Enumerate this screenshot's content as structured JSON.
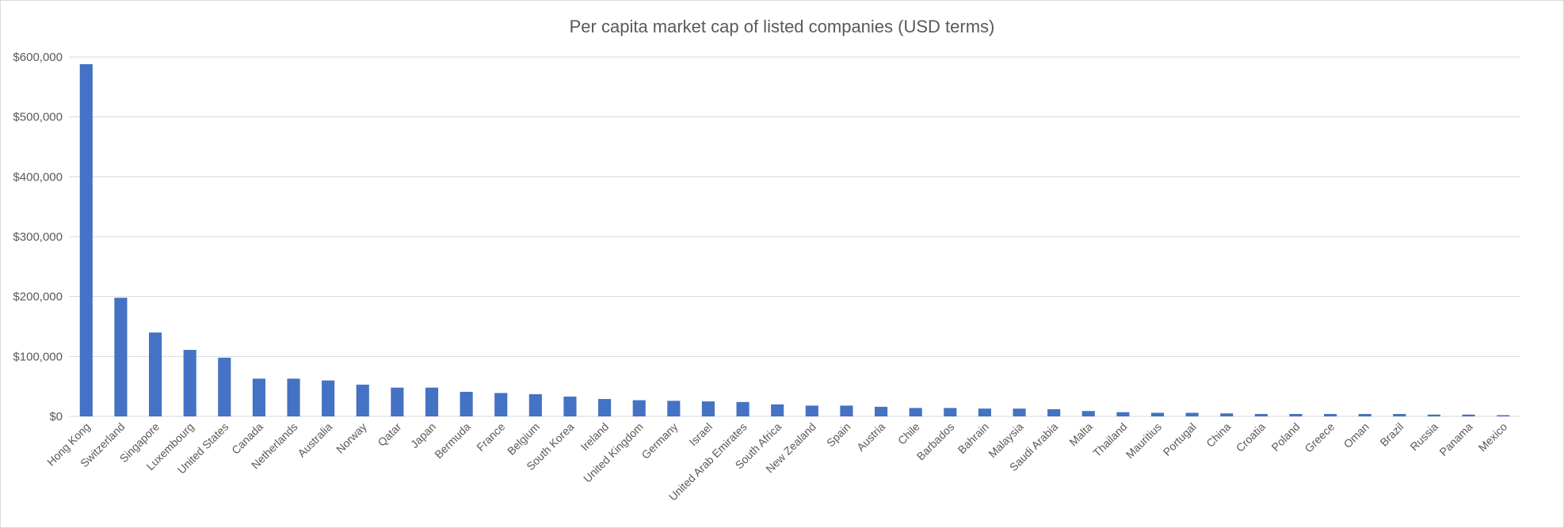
{
  "chart_data": {
    "type": "bar",
    "title": "Per capita market cap of listed companies (USD terms)",
    "xlabel": "",
    "ylabel": "",
    "ylim": [
      0,
      600000
    ],
    "yticks": [
      0,
      100000,
      200000,
      300000,
      400000,
      500000,
      600000
    ],
    "ytick_labels": [
      "$0",
      "$100,000",
      "$200,000",
      "$300,000",
      "$400,000",
      "$500,000",
      "$600,000"
    ],
    "grid": true,
    "legend": "none",
    "colors": {
      "bar": "#4472c4",
      "grid": "#d9d9d9",
      "text": "#595959"
    },
    "categories": [
      "Hong Kong",
      "Switzerland",
      "Singapore",
      "Luxembourg",
      "United States",
      "Canada",
      "Netherlands",
      "Australia",
      "Norway",
      "Qatar",
      "Japan",
      "Bermuda",
      "France",
      "Belgium",
      "South Korea",
      "Ireland",
      "United Kingdom",
      "Germany",
      "Israel",
      "United Arab Emirates",
      "South Africa",
      "New Zealand",
      "Spain",
      "Austria",
      "Chile",
      "Barbados",
      "Bahrain",
      "Malaysia",
      "Saudi Arabia",
      "Malta",
      "Thailand",
      "Mauritius",
      "Portugal",
      "China",
      "Croatia",
      "Poland",
      "Greece",
      "Oman",
      "Brazil",
      "Russia",
      "Panama",
      "Mexico"
    ],
    "values": [
      588000,
      198000,
      140000,
      111000,
      98000,
      63000,
      63000,
      60000,
      53000,
      48000,
      48000,
      41000,
      39000,
      37000,
      33000,
      29000,
      27000,
      26000,
      25000,
      24000,
      20000,
      18000,
      18000,
      16000,
      14000,
      14000,
      13000,
      13000,
      12000,
      9000,
      7000,
      6000,
      6000,
      5000,
      4000,
      4000,
      4000,
      4000,
      4000,
      3000,
      3000,
      2000
    ]
  }
}
